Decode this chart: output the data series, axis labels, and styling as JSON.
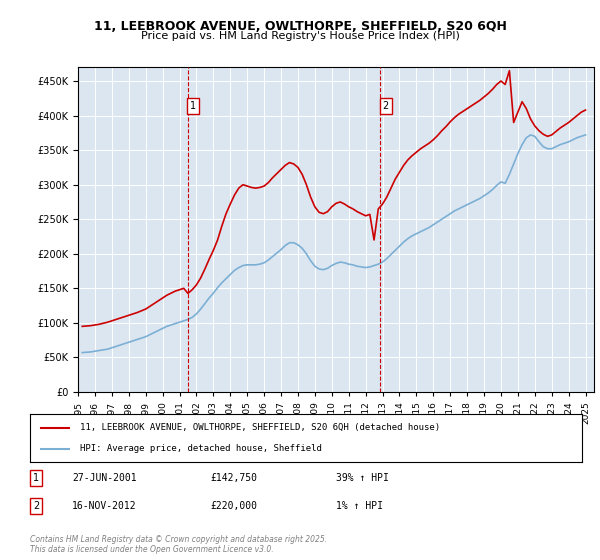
{
  "title_line1": "11, LEEBROOK AVENUE, OWLTHORPE, SHEFFIELD, S20 6QH",
  "title_line2": "Price paid vs. HM Land Registry's House Price Index (HPI)",
  "ylabel_ticks": [
    "£0",
    "£50K",
    "£100K",
    "£150K",
    "£200K",
    "£250K",
    "£300K",
    "£350K",
    "£400K",
    "£450K"
  ],
  "ytick_values": [
    0,
    50000,
    100000,
    150000,
    200000,
    250000,
    300000,
    350000,
    400000,
    450000
  ],
  "ylim": [
    0,
    470000
  ],
  "xlim_start": 1995.0,
  "xlim_end": 2025.5,
  "background_color": "#dce6f1",
  "plot_bg_color": "#dce6f1",
  "line1_color": "#cc0000",
  "line2_color": "#7bafd4",
  "marker1_date": 2001.49,
  "marker1_value": 142750,
  "marker1_label": "1",
  "marker2_date": 2012.88,
  "marker2_value": 220000,
  "marker2_label": "2",
  "legend_line1": "11, LEEBROOK AVENUE, OWLTHORPE, SHEFFIELD, S20 6QH (detached house)",
  "legend_line2": "HPI: Average price, detached house, Sheffield",
  "note1_label": "1",
  "note1_date": "27-JUN-2001",
  "note1_price": "£142,750",
  "note1_hpi": "39% ↑ HPI",
  "note2_label": "2",
  "note2_date": "16-NOV-2012",
  "note2_price": "£220,000",
  "note2_hpi": "1% ↑ HPI",
  "footer": "Contains HM Land Registry data © Crown copyright and database right 2025.\nThis data is licensed under the Open Government Licence v3.0.",
  "hpi_data": {
    "years": [
      1995.25,
      1995.5,
      1995.75,
      1996.0,
      1996.25,
      1996.5,
      1996.75,
      1997.0,
      1997.25,
      1997.5,
      1997.75,
      1998.0,
      1998.25,
      1998.5,
      1998.75,
      1999.0,
      1999.25,
      1999.5,
      1999.75,
      2000.0,
      2000.25,
      2000.5,
      2000.75,
      2001.0,
      2001.25,
      2001.5,
      2001.75,
      2002.0,
      2002.25,
      2002.5,
      2002.75,
      2003.0,
      2003.25,
      2003.5,
      2003.75,
      2004.0,
      2004.25,
      2004.5,
      2004.75,
      2005.0,
      2005.25,
      2005.5,
      2005.75,
      2006.0,
      2006.25,
      2006.5,
      2006.75,
      2007.0,
      2007.25,
      2007.5,
      2007.75,
      2008.0,
      2008.25,
      2008.5,
      2008.75,
      2009.0,
      2009.25,
      2009.5,
      2009.75,
      2010.0,
      2010.25,
      2010.5,
      2010.75,
      2011.0,
      2011.25,
      2011.5,
      2011.75,
      2012.0,
      2012.25,
      2012.5,
      2012.75,
      2013.0,
      2013.25,
      2013.5,
      2013.75,
      2014.0,
      2014.25,
      2014.5,
      2014.75,
      2015.0,
      2015.25,
      2015.5,
      2015.75,
      2016.0,
      2016.25,
      2016.5,
      2016.75,
      2017.0,
      2017.25,
      2017.5,
      2017.75,
      2018.0,
      2018.25,
      2018.5,
      2018.75,
      2019.0,
      2019.25,
      2019.5,
      2019.75,
      2020.0,
      2020.25,
      2020.5,
      2020.75,
      2021.0,
      2021.25,
      2021.5,
      2021.75,
      2022.0,
      2022.25,
      2022.5,
      2022.75,
      2023.0,
      2023.25,
      2023.5,
      2023.75,
      2024.0,
      2024.25,
      2024.5,
      2024.75,
      2025.0
    ],
    "values": [
      57000,
      57500,
      58000,
      59000,
      60000,
      61000,
      62000,
      64000,
      66000,
      68000,
      70000,
      72000,
      74000,
      76000,
      78000,
      80000,
      83000,
      86000,
      89000,
      92000,
      95000,
      97000,
      99000,
      101000,
      103000,
      105000,
      108000,
      113000,
      120000,
      128000,
      136000,
      143000,
      151000,
      158000,
      164000,
      170000,
      176000,
      180000,
      183000,
      184000,
      184000,
      184000,
      185000,
      187000,
      191000,
      196000,
      201000,
      206000,
      212000,
      216000,
      216000,
      213000,
      208000,
      200000,
      190000,
      182000,
      178000,
      177000,
      179000,
      183000,
      186000,
      188000,
      187000,
      185000,
      184000,
      182000,
      181000,
      180000,
      181000,
      183000,
      185000,
      188000,
      193000,
      199000,
      205000,
      211000,
      217000,
      222000,
      226000,
      229000,
      232000,
      235000,
      238000,
      242000,
      246000,
      250000,
      254000,
      258000,
      262000,
      265000,
      268000,
      271000,
      274000,
      277000,
      280000,
      284000,
      288000,
      293000,
      299000,
      304000,
      302000,
      315000,
      330000,
      345000,
      358000,
      368000,
      372000,
      370000,
      362000,
      355000,
      352000,
      352000,
      355000,
      358000,
      360000,
      362000,
      365000,
      368000,
      370000,
      372000
    ]
  },
  "price_data": {
    "years": [
      1995.25,
      1995.5,
      1995.75,
      1996.0,
      1996.25,
      1996.5,
      1996.75,
      1997.0,
      1997.25,
      1997.5,
      1997.75,
      1998.0,
      1998.25,
      1998.5,
      1998.75,
      1999.0,
      1999.25,
      1999.5,
      1999.75,
      2000.0,
      2000.25,
      2000.5,
      2000.75,
      2001.0,
      2001.25,
      2001.5,
      2001.75,
      2002.0,
      2002.25,
      2002.5,
      2002.75,
      2003.0,
      2003.25,
      2003.5,
      2003.75,
      2004.0,
      2004.25,
      2004.5,
      2004.75,
      2005.0,
      2005.25,
      2005.5,
      2005.75,
      2006.0,
      2006.25,
      2006.5,
      2006.75,
      2007.0,
      2007.25,
      2007.5,
      2007.75,
      2008.0,
      2008.25,
      2008.5,
      2008.75,
      2009.0,
      2009.25,
      2009.5,
      2009.75,
      2010.0,
      2010.25,
      2010.5,
      2010.75,
      2011.0,
      2011.25,
      2011.5,
      2011.75,
      2012.0,
      2012.25,
      2012.5,
      2012.75,
      2013.0,
      2013.25,
      2013.5,
      2013.75,
      2014.0,
      2014.25,
      2014.5,
      2014.75,
      2015.0,
      2015.25,
      2015.5,
      2015.75,
      2016.0,
      2016.25,
      2016.5,
      2016.75,
      2017.0,
      2017.25,
      2017.5,
      2017.75,
      2018.0,
      2018.25,
      2018.5,
      2018.75,
      2019.0,
      2019.25,
      2019.5,
      2019.75,
      2020.0,
      2020.25,
      2020.5,
      2020.75,
      2021.0,
      2021.25,
      2021.5,
      2021.75,
      2022.0,
      2022.25,
      2022.5,
      2022.75,
      2023.0,
      2023.25,
      2023.5,
      2023.75,
      2024.0,
      2024.25,
      2024.5,
      2024.75,
      2025.0
    ],
    "values": [
      95000,
      95500,
      96000,
      97000,
      98000,
      99500,
      101000,
      103000,
      105000,
      107000,
      109000,
      111000,
      113000,
      115000,
      117500,
      120000,
      124000,
      128000,
      132000,
      136000,
      140000,
      143000,
      146000,
      148000,
      150000,
      142750,
      148000,
      155000,
      165000,
      178000,
      192000,
      205000,
      220000,
      240000,
      258000,
      272000,
      285000,
      295000,
      300000,
      298000,
      296000,
      295000,
      296000,
      298000,
      303000,
      310000,
      316000,
      322000,
      328000,
      332000,
      330000,
      325000,
      315000,
      300000,
      282000,
      268000,
      260000,
      258000,
      261000,
      268000,
      273000,
      275000,
      272000,
      268000,
      265000,
      261000,
      258000,
      255000,
      257000,
      220000,
      265000,
      272000,
      282000,
      295000,
      308000,
      318000,
      328000,
      336000,
      342000,
      347000,
      352000,
      356000,
      360000,
      365000,
      371000,
      378000,
      384000,
      391000,
      397000,
      402000,
      406000,
      410000,
      414000,
      418000,
      422000,
      427000,
      432000,
      438000,
      445000,
      450000,
      445000,
      465000,
      390000,
      405000,
      420000,
      410000,
      395000,
      385000,
      378000,
      373000,
      370000,
      372000,
      377000,
      382000,
      386000,
      390000,
      395000,
      400000,
      405000,
      408000
    ]
  }
}
